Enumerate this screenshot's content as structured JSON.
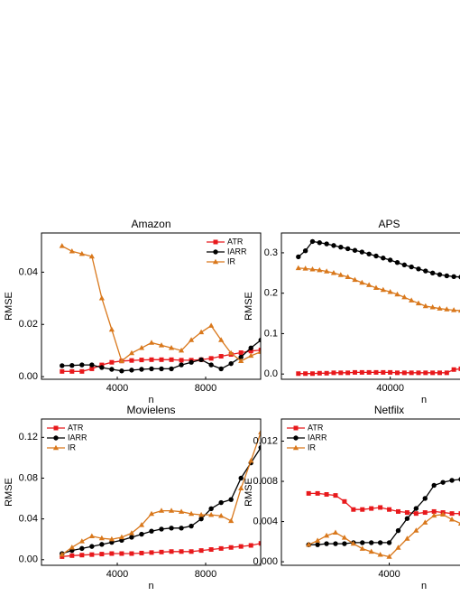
{
  "chart_data": [
    {
      "type": "line",
      "title": "Amazon",
      "x_label": "n",
      "y_label": "RMSE",
      "x": [
        1500,
        1950,
        2400,
        2850,
        3300,
        3750,
        4200,
        4650,
        5100,
        5550,
        6000,
        6450,
        6900,
        7350,
        7800,
        8250,
        8700,
        9150,
        9600,
        10050,
        10500
      ],
      "series": [
        {
          "name": "ATR",
          "color": "#e8191c",
          "marker": "square",
          "values": [
            0.002,
            0.002,
            0.002,
            0.003,
            0.0045,
            0.0055,
            0.006,
            0.0062,
            0.0064,
            0.0065,
            0.0065,
            0.0065,
            0.0063,
            0.0063,
            0.0065,
            0.007,
            0.0078,
            0.0085,
            0.0092,
            0.0098,
            0.0102
          ]
        },
        {
          "name": "IARR",
          "color": "#000000",
          "marker": "circle",
          "values": [
            0.0042,
            0.0043,
            0.0045,
            0.0045,
            0.0035,
            0.0028,
            0.0022,
            0.0025,
            0.0028,
            0.003,
            0.003,
            0.003,
            0.0045,
            0.0055,
            0.0065,
            0.0045,
            0.003,
            0.005,
            0.0075,
            0.011,
            0.014
          ]
        },
        {
          "name": "IR",
          "color": "#d9781c",
          "marker": "triangle",
          "values": [
            0.05,
            0.048,
            0.047,
            0.046,
            0.03,
            0.018,
            0.006,
            0.009,
            0.011,
            0.013,
            0.012,
            0.011,
            0.01,
            0.014,
            0.017,
            0.0195,
            0.014,
            0.009,
            0.006,
            0.008,
            0.0095
          ]
        }
      ],
      "xlim": [
        570,
        10490
      ],
      "ylim": [
        -0.001,
        0.055
      ],
      "xticks": [
        4000,
        8000
      ],
      "yticks": [
        {
          "value": 0,
          "label": "0.00"
        },
        0.02,
        0.04
      ],
      "legend": "upper right"
    },
    {
      "type": "line",
      "title": "APS",
      "x_label": "n",
      "y_label": "RMSE",
      "x": [
        14000,
        16000,
        18000,
        20000,
        22000,
        24000,
        26000,
        28000,
        30000,
        32000,
        34000,
        36000,
        38000,
        40000,
        42000,
        44000,
        46000,
        48000,
        50000,
        52000,
        54000,
        56000,
        58000,
        60000
      ],
      "series": [
        {
          "name": "ATR",
          "color": "#e8191c",
          "marker": "square",
          "values": [
            0.001,
            0.001,
            0.001,
            0.002,
            0.002,
            0.003,
            0.003,
            0.003,
            0.004,
            0.004,
            0.004,
            0.004,
            0.004,
            0.004,
            0.003,
            0.003,
            0.003,
            0.003,
            0.003,
            0.003,
            0.003,
            0.003,
            0.011,
            0.013
          ]
        },
        {
          "name": "IARR",
          "color": "#000000",
          "marker": "circle",
          "values": [
            0.29,
            0.305,
            0.328,
            0.325,
            0.322,
            0.318,
            0.314,
            0.31,
            0.306,
            0.302,
            0.297,
            0.292,
            0.287,
            0.282,
            0.276,
            0.27,
            0.265,
            0.26,
            0.255,
            0.25,
            0.246,
            0.243,
            0.241,
            0.24
          ]
        },
        {
          "name": "IR",
          "color": "#d9781c",
          "marker": "triangle",
          "values": [
            0.262,
            0.261,
            0.259,
            0.257,
            0.254,
            0.25,
            0.245,
            0.24,
            0.233,
            0.226,
            0.22,
            0.213,
            0.208,
            0.203,
            0.197,
            0.19,
            0.182,
            0.175,
            0.168,
            0.165,
            0.162,
            0.16,
            0.158,
            0.157
          ]
        }
      ],
      "xlim": [
        9200,
        60000
      ],
      "ylim": [
        -0.013,
        0.349
      ],
      "xticks": [
        40000
      ],
      "yticks": [
        {
          "value": 0,
          "label": "0.0"
        },
        0.1,
        0.2,
        0.3
      ]
    },
    {
      "type": "line",
      "title": "Movielens",
      "x_label": "n",
      "y_label": "RMSE",
      "x": [
        1500,
        1950,
        2400,
        2850,
        3300,
        3750,
        4200,
        4650,
        5100,
        5550,
        6000,
        6450,
        6900,
        7350,
        7800,
        8250,
        8700,
        9150,
        9600,
        10050,
        10500
      ],
      "series": [
        {
          "name": "ATR",
          "color": "#e8191c",
          "marker": "square",
          "values": [
            0.003,
            0.004,
            0.0045,
            0.005,
            0.0055,
            0.006,
            0.006,
            0.006,
            0.0065,
            0.007,
            0.0075,
            0.008,
            0.008,
            0.008,
            0.009,
            0.01,
            0.011,
            0.012,
            0.013,
            0.014,
            0.016
          ]
        },
        {
          "name": "IARR",
          "color": "#000000",
          "marker": "circle",
          "values": [
            0.006,
            0.009,
            0.011,
            0.013,
            0.015,
            0.017,
            0.019,
            0.022,
            0.025,
            0.028,
            0.03,
            0.031,
            0.031,
            0.033,
            0.04,
            0.05,
            0.056,
            0.059,
            0.08,
            0.095,
            0.11
          ]
        },
        {
          "name": "IR",
          "color": "#d9781c",
          "marker": "triangle",
          "values": [
            0.005,
            0.012,
            0.018,
            0.023,
            0.021,
            0.02,
            0.022,
            0.026,
            0.034,
            0.045,
            0.048,
            0.048,
            0.047,
            0.045,
            0.044,
            0.044,
            0.043,
            0.038,
            0.07,
            0.097,
            0.125
          ]
        }
      ],
      "xlim": [
        570,
        10490
      ],
      "ylim": [
        -0.0055,
        0.138
      ],
      "xticks": [
        4000,
        8000
      ],
      "yticks": [
        {
          "value": 0,
          "label": "0.00"
        },
        0.04,
        0.08,
        0.12
      ],
      "legend": "upper left"
    },
    {
      "type": "line",
      "title": "Netfilx",
      "x_label": "n",
      "y_label": "RMSE",
      "x": [
        1750,
        2000,
        2250,
        2500,
        2750,
        3000,
        3250,
        3500,
        3750,
        4000,
        4250,
        4500,
        4750,
        5000,
        5250,
        5500,
        5750,
        6000
      ],
      "series": [
        {
          "name": "ATR",
          "color": "#e8191c",
          "marker": "square",
          "values": [
            0.0068,
            0.0068,
            0.0067,
            0.0066,
            0.006,
            0.0052,
            0.0052,
            0.0053,
            0.0054,
            0.0052,
            0.005,
            0.0049,
            0.0048,
            0.0049,
            0.005,
            0.0049,
            0.0048,
            0.0048
          ]
        },
        {
          "name": "IARR",
          "color": "#000000",
          "marker": "circle",
          "values": [
            0.0017,
            0.0017,
            0.0018,
            0.0018,
            0.0018,
            0.0019,
            0.0019,
            0.0019,
            0.0019,
            0.0019,
            0.0031,
            0.0043,
            0.0053,
            0.0063,
            0.0076,
            0.0079,
            0.0081,
            0.0082
          ]
        },
        {
          "name": "IR",
          "color": "#d9781c",
          "marker": "triangle",
          "values": [
            0.0017,
            0.0021,
            0.0026,
            0.0029,
            0.0024,
            0.0018,
            0.0013,
            0.001,
            0.0007,
            0.0005,
            0.0014,
            0.0023,
            0.0031,
            0.0039,
            0.0046,
            0.0047,
            0.0042,
            0.0038
          ]
        }
      ],
      "xlim": [
        990,
        6000
      ],
      "ylim": [
        -0.00035,
        0.0142
      ],
      "xticks": [
        4000
      ],
      "yticks": [
        {
          "value": 0,
          "label": "0.000"
        },
        0.004,
        0.008,
        0.012
      ],
      "legend": "upper left"
    }
  ]
}
